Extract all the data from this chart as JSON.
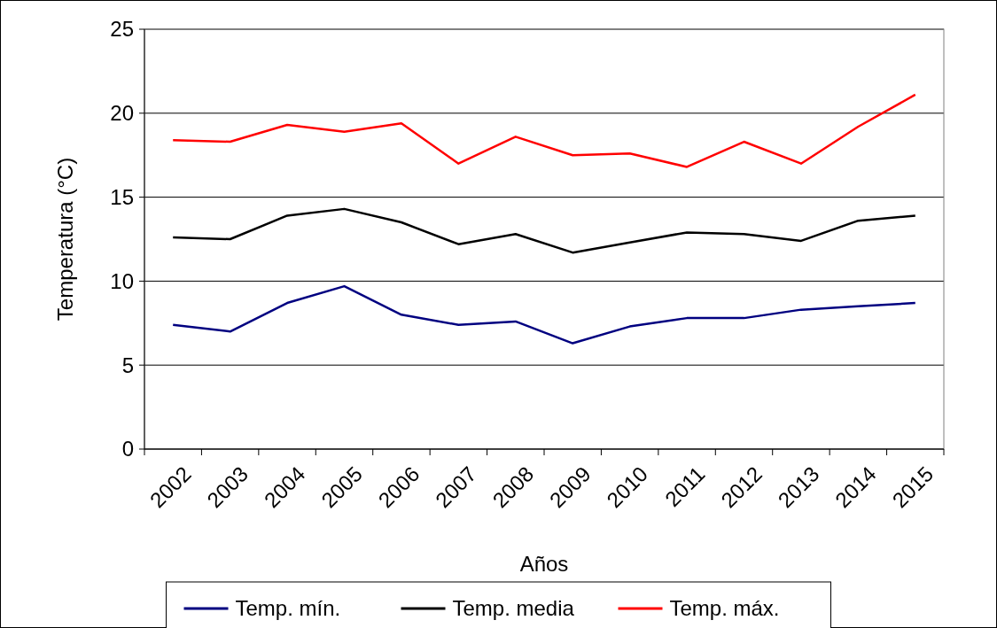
{
  "chart_data": {
    "type": "line",
    "xlabel": "Años",
    "ylabel": "Temperatura (°C)",
    "categories": [
      "2002",
      "2003",
      "2004",
      "2005",
      "2006",
      "2007",
      "2008",
      "2009",
      "2010",
      "2011",
      "2012",
      "2013",
      "2014",
      "2015"
    ],
    "series": [
      {
        "name": "Temp. mín.",
        "color": "#000080",
        "values": [
          7.4,
          7.0,
          8.7,
          9.7,
          8.0,
          7.4,
          7.6,
          6.3,
          7.3,
          7.8,
          7.8,
          8.3,
          8.5,
          8.7
        ]
      },
      {
        "name": "Temp. media",
        "color": "#000000",
        "values": [
          12.6,
          12.5,
          13.9,
          14.3,
          13.5,
          12.2,
          12.8,
          11.7,
          12.3,
          12.9,
          12.8,
          12.4,
          13.6,
          13.9
        ]
      },
      {
        "name": "Temp. máx.",
        "color": "#ff0000",
        "values": [
          18.4,
          18.3,
          19.3,
          18.9,
          19.4,
          17.0,
          18.6,
          17.5,
          17.6,
          16.8,
          18.3,
          17.0,
          19.2,
          21.1
        ]
      }
    ],
    "ylim": [
      0,
      25
    ],
    "yticks": [
      0,
      5,
      10,
      15,
      20,
      25
    ],
    "grid": "y",
    "legend": "bottom",
    "marker": "none",
    "line_style": "solid"
  }
}
